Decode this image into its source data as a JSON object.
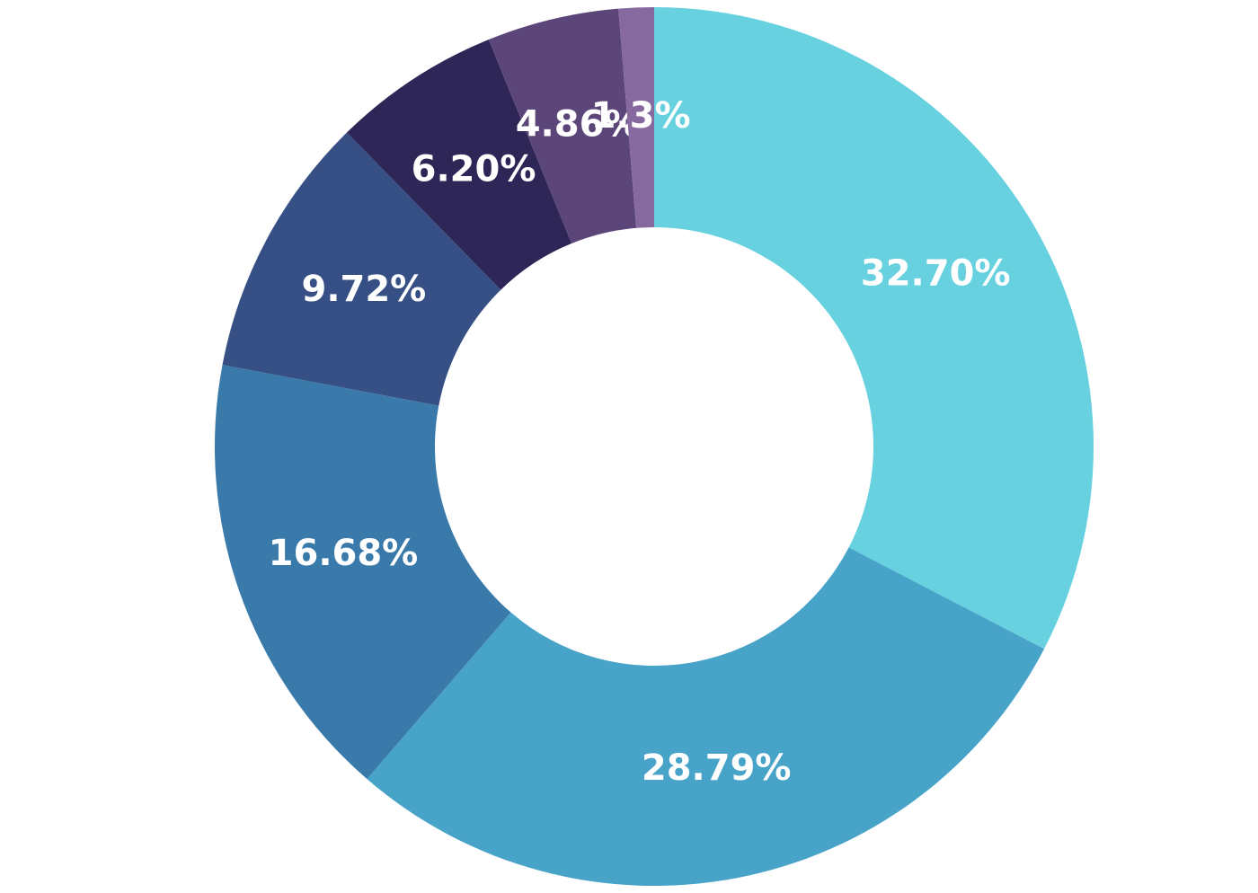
{
  "chart_data": {
    "type": "donut",
    "categories": [
      null,
      null,
      null,
      null,
      null,
      null,
      null
    ],
    "values": [
      32.7,
      28.79,
      16.68,
      9.72,
      6.2,
      4.86,
      1.3
    ],
    "value_labels": [
      "32.70%",
      "28.79%",
      "16.68%",
      "9.72%",
      "6.20%",
      "4.86%",
      "1.3%"
    ],
    "colors": [
      "#67d1e0",
      "#48a3c9",
      "#3a7aaa",
      "#365086",
      "#2f2658",
      "#5c4679",
      "#86699f"
    ]
  }
}
